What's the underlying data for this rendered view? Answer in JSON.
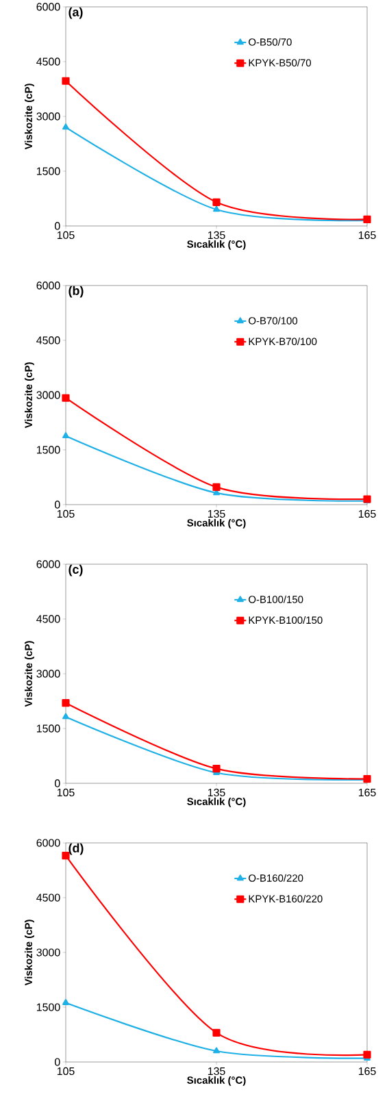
{
  "chart_data": [
    {
      "type": "line",
      "title": "(a)",
      "xlabel": "Sıcaklık (°C)",
      "ylabel": "Viskozite (cP)",
      "x": [
        105,
        135,
        165
      ],
      "xlim": [
        105,
        165
      ],
      "xticks": [
        105,
        135,
        165
      ],
      "ylim": [
        0,
        6000
      ],
      "yticks": [
        0,
        1500,
        3000,
        4500,
        6000
      ],
      "legend": "top right",
      "line_style": "solid",
      "series": [
        {
          "name": "O-B50/70",
          "color": "#1fb0e6",
          "marker": "triangle",
          "values": [
            2700,
            450,
            150
          ]
        },
        {
          "name": "KPYK-B50/70",
          "color": "#ff0000",
          "marker": "square",
          "values": [
            3970,
            650,
            180
          ]
        }
      ]
    },
    {
      "type": "line",
      "title": "(b)",
      "xlabel": "Sıcaklık (°C)",
      "ylabel": "Viskozite (cP)",
      "x": [
        105,
        135,
        165
      ],
      "xlim": [
        105,
        165
      ],
      "xticks": [
        105,
        135,
        165
      ],
      "ylim": [
        0,
        6000
      ],
      "yticks": [
        0,
        1500,
        3000,
        4500,
        6000
      ],
      "legend": "top right",
      "line_style": "solid",
      "series": [
        {
          "name": "O-B70/100",
          "color": "#1fb0e6",
          "marker": "triangle",
          "values": [
            1880,
            320,
            100
          ]
        },
        {
          "name": "KPYK-B70/100",
          "color": "#ff0000",
          "marker": "square",
          "values": [
            2920,
            480,
            150
          ]
        }
      ]
    },
    {
      "type": "line",
      "title": "(c)",
      "xlabel": "Sıcaklık (°C)",
      "ylabel": "Viskozite (cP)",
      "x": [
        105,
        135,
        165
      ],
      "xlim": [
        105,
        165
      ],
      "xticks": [
        105,
        135,
        165
      ],
      "ylim": [
        0,
        6000
      ],
      "yticks": [
        0,
        1500,
        3000,
        4500,
        6000
      ],
      "legend": "top right",
      "line_style": "solid",
      "series": [
        {
          "name": "O-B100/150",
          "color": "#1fb0e6",
          "marker": "triangle",
          "values": [
            1820,
            290,
            100
          ]
        },
        {
          "name": "KPYK-B100/150",
          "color": "#ff0000",
          "marker": "square",
          "values": [
            2200,
            400,
            120
          ]
        }
      ]
    },
    {
      "type": "line",
      "title": "(d)",
      "xlabel": "Sıcaklık (°C)",
      "ylabel": "Viskozite (cP)",
      "x": [
        105,
        135,
        165
      ],
      "xlim": [
        105,
        165
      ],
      "xticks": [
        105,
        135,
        165
      ],
      "ylim": [
        0,
        6000
      ],
      "yticks": [
        0,
        1500,
        3000,
        4500,
        6000
      ],
      "legend": "top right",
      "line_style": "solid",
      "series": [
        {
          "name": "O-B160/220",
          "color": "#1fb0e6",
          "marker": "triangle",
          "values": [
            1620,
            300,
            100
          ]
        },
        {
          "name": "KPYK-B160/220",
          "color": "#ff0000",
          "marker": "square",
          "values": [
            5650,
            800,
            200
          ]
        }
      ]
    }
  ]
}
